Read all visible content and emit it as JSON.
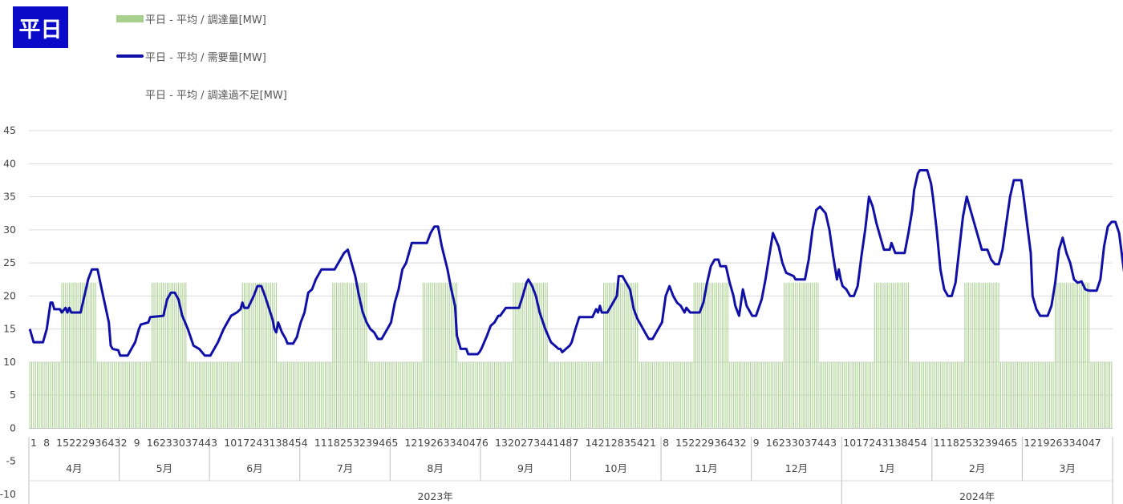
{
  "badge": "平日",
  "chart_data": {
    "type": "bar",
    "title": "",
    "legend": [
      {
        "name": "平日 - 平均 / 調達量[MW]",
        "type": "bar",
        "color": "#a9d18e"
      },
      {
        "name": "平日 - 平均 / 需要量[MW]",
        "type": "line",
        "color": "#1010a8"
      },
      {
        "name": "平日 - 平均 / 調達過不足[MW]",
        "type": "none",
        "color": "#ffffff"
      }
    ],
    "legend_position": "top-left",
    "ylim": [
      -10,
      45
    ],
    "yticks": [
      -10,
      -5,
      0,
      5,
      10,
      15,
      20,
      25,
      30,
      35,
      40,
      45
    ],
    "grid": true,
    "slots_per_month": 48,
    "x_tick_labels": [
      "1",
      "8",
      "15",
      "22",
      "29",
      "36",
      "43",
      "2",
      "9",
      "16",
      "23",
      "30",
      "37",
      "44",
      "3",
      "10",
      "17",
      "24",
      "31",
      "38",
      "45",
      "4",
      "11",
      "18",
      "25",
      "32",
      "39",
      "46",
      "5",
      "12",
      "19",
      "26",
      "33",
      "40",
      "47",
      "6",
      "13",
      "20",
      "27",
      "34",
      "41",
      "48",
      "7",
      "14",
      "21",
      "28",
      "35",
      "42",
      "1",
      "8",
      "15",
      "22",
      "29",
      "36",
      "43",
      "2",
      "9",
      "16",
      "23",
      "30",
      "37",
      "44",
      "3",
      "10",
      "17",
      "24",
      "31",
      "38",
      "45",
      "4",
      "11",
      "18",
      "25",
      "32",
      "39",
      "46",
      "5",
      "12",
      "19",
      "26",
      "33",
      "40",
      "47"
    ],
    "months": [
      "4月",
      "5月",
      "6月",
      "7月",
      "8月",
      "9月",
      "10月",
      "11月",
      "12月",
      "1月",
      "2月",
      "3月"
    ],
    "years": [
      {
        "label": "2023年",
        "months": 9
      },
      {
        "label": "2024年",
        "months": 3
      }
    ],
    "procurement": {
      "base": 10,
      "peak": 22,
      "peak_slots": [
        18,
        36
      ]
    },
    "demand": [
      {
        "month": "4月",
        "points": [
          [
            1,
            15
          ],
          [
            3,
            13
          ],
          [
            8,
            13
          ],
          [
            10,
            15
          ],
          [
            12,
            19
          ],
          [
            13,
            19
          ],
          [
            14,
            18
          ],
          [
            17,
            18
          ],
          [
            18,
            17.5
          ],
          [
            20,
            18.2
          ],
          [
            21,
            17.5
          ],
          [
            22,
            18.2
          ],
          [
            23,
            17.5
          ],
          [
            28,
            17.5
          ],
          [
            30,
            20
          ],
          [
            32,
            22.5
          ],
          [
            34,
            24
          ],
          [
            37,
            24
          ],
          [
            40,
            20
          ],
          [
            43,
            16
          ],
          [
            44,
            12.5
          ],
          [
            45,
            12
          ],
          [
            48,
            11.8
          ]
        ]
      },
      {
        "month": "5月",
        "points": [
          [
            1,
            11
          ],
          [
            5,
            11
          ],
          [
            9,
            13
          ],
          [
            11,
            15
          ],
          [
            12,
            15.7
          ],
          [
            16,
            16
          ],
          [
            17,
            16.8
          ],
          [
            24,
            17
          ],
          [
            26,
            19.5
          ],
          [
            28,
            20.5
          ],
          [
            30,
            20.5
          ],
          [
            32,
            19.5
          ],
          [
            34,
            17
          ],
          [
            37,
            15
          ],
          [
            40,
            12.5
          ],
          [
            43,
            12
          ],
          [
            46,
            11
          ],
          [
            48,
            11
          ]
        ]
      },
      {
        "month": "6月",
        "points": [
          [
            1,
            11
          ],
          [
            5,
            13
          ],
          [
            8,
            15
          ],
          [
            10,
            16
          ],
          [
            12,
            17
          ],
          [
            15,
            17.5
          ],
          [
            17,
            18
          ],
          [
            18,
            19
          ],
          [
            19,
            18.2
          ],
          [
            21,
            18.2
          ],
          [
            24,
            20
          ],
          [
            26,
            21.5
          ],
          [
            28,
            21.5
          ],
          [
            30,
            20
          ],
          [
            34,
            16.5
          ],
          [
            35,
            15
          ],
          [
            36,
            14.5
          ],
          [
            37,
            16
          ],
          [
            39,
            14.5
          ],
          [
            41,
            13.5
          ],
          [
            42,
            12.8
          ],
          [
            45,
            12.8
          ],
          [
            47,
            13.8
          ],
          [
            48,
            15
          ]
        ]
      },
      {
        "month": "7月",
        "points": [
          [
            1,
            16
          ],
          [
            3,
            17.5
          ],
          [
            5,
            20.5
          ],
          [
            7,
            21
          ],
          [
            9,
            22.5
          ],
          [
            12,
            24
          ],
          [
            19,
            24
          ],
          [
            22,
            25.5
          ],
          [
            24,
            26.5
          ],
          [
            26,
            27
          ],
          [
            27,
            26
          ],
          [
            30,
            23
          ],
          [
            32,
            20
          ],
          [
            34,
            17.5
          ],
          [
            36,
            16
          ],
          [
            38,
            15
          ],
          [
            40,
            14.5
          ],
          [
            42,
            13.5
          ],
          [
            44,
            13.5
          ],
          [
            46,
            14.5
          ],
          [
            48,
            15.5
          ]
        ]
      },
      {
        "month": "8月",
        "points": [
          [
            1,
            16
          ],
          [
            3,
            19
          ],
          [
            5,
            21
          ],
          [
            7,
            24
          ],
          [
            9,
            25
          ],
          [
            11,
            27
          ],
          [
            12,
            28
          ],
          [
            20,
            28
          ],
          [
            22,
            29.5
          ],
          [
            24,
            30.5
          ],
          [
            26,
            30.5
          ],
          [
            28,
            27.5
          ],
          [
            31,
            24
          ],
          [
            33,
            21
          ],
          [
            35,
            18.5
          ],
          [
            36,
            14
          ],
          [
            38,
            12
          ],
          [
            41,
            12
          ],
          [
            42,
            11.2
          ],
          [
            47,
            11.2
          ],
          [
            48,
            11.5
          ]
        ]
      },
      {
        "month": "9月",
        "points": [
          [
            1,
            12
          ],
          [
            4,
            14
          ],
          [
            6,
            15.5
          ],
          [
            8,
            16
          ],
          [
            10,
            17
          ],
          [
            11,
            17
          ],
          [
            14,
            18.2
          ],
          [
            21,
            18.2
          ],
          [
            23,
            20
          ],
          [
            25,
            22
          ],
          [
            26,
            22.5
          ],
          [
            28,
            21.5
          ],
          [
            30,
            20
          ],
          [
            32,
            17.5
          ],
          [
            35,
            15
          ],
          [
            38,
            13
          ],
          [
            40,
            12.5
          ],
          [
            42,
            12
          ],
          [
            43,
            12
          ],
          [
            44,
            11.5
          ],
          [
            46,
            12
          ],
          [
            48,
            12.5
          ]
        ]
      },
      {
        "month": "10月",
        "points": [
          [
            1,
            13
          ],
          [
            3,
            15
          ],
          [
            5,
            16.8
          ],
          [
            12,
            16.8
          ],
          [
            14,
            18
          ],
          [
            15,
            17.5
          ],
          [
            16,
            18.5
          ],
          [
            17,
            17.5
          ],
          [
            20,
            17.5
          ],
          [
            23,
            19
          ],
          [
            25,
            20
          ],
          [
            26,
            23
          ],
          [
            28,
            23
          ],
          [
            30,
            22
          ],
          [
            32,
            21
          ],
          [
            34,
            18
          ],
          [
            36,
            16.5
          ],
          [
            38,
            15.5
          ],
          [
            40,
            14.5
          ],
          [
            42,
            13.5
          ],
          [
            44,
            13.5
          ],
          [
            46,
            14.5
          ],
          [
            48,
            15.5
          ]
        ]
      },
      {
        "month": "11月",
        "points": [
          [
            1,
            16
          ],
          [
            3,
            20
          ],
          [
            5,
            21.5
          ],
          [
            7,
            20
          ],
          [
            9,
            19
          ],
          [
            11,
            18.5
          ],
          [
            13,
            17.5
          ],
          [
            14,
            18.2
          ],
          [
            16,
            17.5
          ],
          [
            21,
            17.5
          ],
          [
            23,
            19
          ],
          [
            25,
            22
          ],
          [
            27,
            24.5
          ],
          [
            29,
            25.5
          ],
          [
            31,
            25.5
          ],
          [
            32,
            24.5
          ],
          [
            35,
            24.5
          ],
          [
            37,
            22
          ],
          [
            39,
            20
          ],
          [
            40,
            18.5
          ],
          [
            42,
            17
          ],
          [
            44,
            21
          ],
          [
            46,
            18.5
          ],
          [
            48,
            17.5
          ]
        ]
      },
      {
        "month": "12月",
        "points": [
          [
            1,
            17
          ],
          [
            3,
            17
          ],
          [
            6,
            19.5
          ],
          [
            8,
            22.5
          ],
          [
            10,
            26
          ],
          [
            12,
            29.5
          ],
          [
            15,
            27.5
          ],
          [
            17,
            25
          ],
          [
            19,
            23.5
          ],
          [
            23,
            23
          ],
          [
            24,
            22.5
          ],
          [
            29,
            22.5
          ],
          [
            31,
            25.5
          ],
          [
            33,
            30
          ],
          [
            35,
            33
          ],
          [
            37,
            33.5
          ],
          [
            40,
            32.5
          ],
          [
            42,
            30
          ],
          [
            44,
            26
          ],
          [
            46,
            22.5
          ],
          [
            47,
            24
          ],
          [
            48,
            22.5
          ]
        ]
      },
      {
        "month": "1月",
        "points": [
          [
            1,
            21.5
          ],
          [
            3,
            21
          ],
          [
            5,
            20
          ],
          [
            7,
            20
          ],
          [
            9,
            21.5
          ],
          [
            11,
            26
          ],
          [
            13,
            30
          ],
          [
            15,
            35
          ],
          [
            17,
            33.5
          ],
          [
            19,
            31
          ],
          [
            21,
            29
          ],
          [
            23,
            27
          ],
          [
            26,
            27
          ],
          [
            27,
            28
          ],
          [
            29,
            26.5
          ],
          [
            34,
            26.5
          ],
          [
            36,
            29.5
          ],
          [
            38,
            33
          ],
          [
            39,
            36
          ],
          [
            41,
            38.5
          ],
          [
            42,
            39
          ],
          [
            46,
            39
          ],
          [
            48,
            37
          ]
        ]
      },
      {
        "month": "1月b",
        "points": [
          [
            1,
            35
          ],
          [
            3,
            30
          ],
          [
            5,
            24
          ],
          [
            7,
            21
          ],
          [
            9,
            20
          ],
          [
            11,
            20
          ],
          [
            13,
            22
          ],
          [
            15,
            27
          ],
          [
            17,
            32
          ],
          [
            19,
            35
          ],
          [
            21,
            33
          ],
          [
            23,
            31
          ],
          [
            25,
            29
          ],
          [
            27,
            27
          ],
          [
            30,
            27
          ],
          [
            32,
            25.5
          ],
          [
            34,
            24.8
          ],
          [
            36,
            24.8
          ],
          [
            38,
            27
          ],
          [
            40,
            31
          ],
          [
            42,
            35
          ],
          [
            44,
            37.5
          ],
          [
            48,
            37.5
          ]
        ]
      },
      {
        "month": "3月",
        "points": [
          [
            1,
            35.5
          ],
          [
            3,
            31
          ],
          [
            5,
            26.5
          ],
          [
            6,
            20
          ],
          [
            8,
            18
          ],
          [
            10,
            17
          ],
          [
            14,
            17
          ],
          [
            16,
            18.5
          ],
          [
            18,
            22
          ],
          [
            20,
            27
          ],
          [
            22,
            28.8
          ],
          [
            24,
            26.5
          ],
          [
            26,
            25
          ],
          [
            28,
            22.5
          ],
          [
            30,
            22
          ],
          [
            32,
            22.2
          ],
          [
            34,
            21
          ],
          [
            36,
            20.8
          ],
          [
            40,
            20.8
          ],
          [
            42,
            22.5
          ],
          [
            44,
            27.5
          ],
          [
            46,
            30.5
          ],
          [
            48,
            31.2
          ],
          [
            50,
            31.2
          ],
          [
            52,
            29.5
          ],
          [
            54,
            25
          ],
          [
            56,
            20.8
          ]
        ]
      }
    ]
  }
}
